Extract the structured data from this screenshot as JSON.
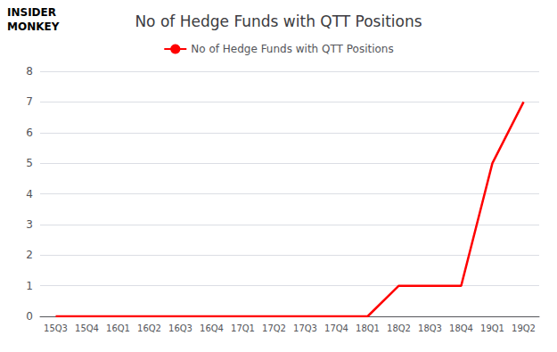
{
  "chart_data": {
    "type": "line",
    "title": "No of Hedge Funds with QTT Positions",
    "categories": [
      "15Q3",
      "15Q4",
      "16Q1",
      "16Q2",
      "16Q3",
      "16Q4",
      "17Q1",
      "17Q2",
      "17Q3",
      "17Q4",
      "18Q1",
      "18Q2",
      "18Q3",
      "18Q4",
      "19Q1",
      "19Q2"
    ],
    "series": [
      {
        "name": "No of Hedge Funds with QTT Positions",
        "color": "#ff0000",
        "values": [
          0,
          0,
          0,
          0,
          0,
          0,
          0,
          0,
          0,
          0,
          0,
          1,
          1,
          1,
          5,
          7
        ]
      }
    ],
    "ylim": [
      0,
      8
    ],
    "yticks": [
      0,
      1,
      2,
      3,
      4,
      5,
      6,
      7,
      8
    ],
    "grid": true,
    "legend": "top",
    "annotations": [
      "INSIDER",
      "MONKEY"
    ]
  }
}
